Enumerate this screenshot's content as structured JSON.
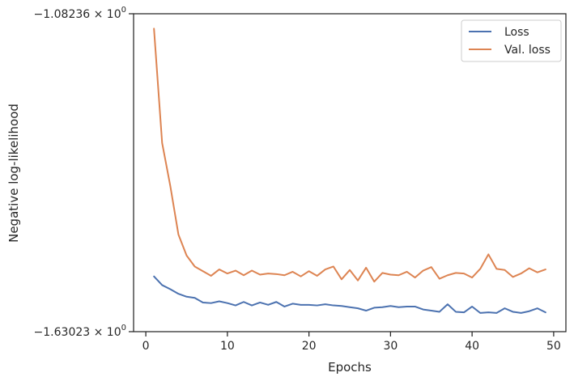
{
  "chart_data": {
    "type": "line",
    "title": "",
    "xlabel": "Epochs",
    "ylabel": "Negative log-likelihood",
    "y_scale": "log",
    "xlim": [
      -1.5,
      51.5
    ],
    "ylim": [
      -1.08236,
      -1.63023
    ],
    "x_ticks": [
      0,
      10,
      20,
      30,
      40,
      50
    ],
    "y_tick_labels": [
      {
        "value": -1.08236,
        "mantissa": "−1.08236",
        "base": "10",
        "exp": "0"
      },
      {
        "value": -1.63023,
        "mantissa": "−1.63023",
        "base": "10",
        "exp": "0"
      }
    ],
    "grid": false,
    "legend_position": "top-right",
    "x": [
      1,
      2,
      3,
      4,
      5,
      6,
      7,
      8,
      9,
      10,
      11,
      12,
      13,
      14,
      15,
      16,
      17,
      18,
      19,
      20,
      21,
      22,
      23,
      24,
      25,
      26,
      27,
      28,
      29,
      30,
      31,
      32,
      33,
      34,
      35,
      36,
      37,
      38,
      39,
      40,
      41,
      42,
      43,
      44,
      45,
      46,
      47,
      48,
      49
    ],
    "series": [
      {
        "name": "Loss",
        "color": "#4c72b0",
        "values": [
          -1.535,
          -1.55,
          -1.557,
          -1.565,
          -1.57,
          -1.572,
          -1.58,
          -1.581,
          -1.578,
          -1.581,
          -1.585,
          -1.579,
          -1.585,
          -1.58,
          -1.584,
          -1.579,
          -1.587,
          -1.582,
          -1.584,
          -1.584,
          -1.585,
          -1.583,
          -1.585,
          -1.586,
          -1.588,
          -1.59,
          -1.594,
          -1.589,
          -1.588,
          -1.586,
          -1.588,
          -1.587,
          -1.587,
          -1.592,
          -1.594,
          -1.596,
          -1.583,
          -1.596,
          -1.597,
          -1.587,
          -1.598,
          -1.597,
          -1.598,
          -1.59,
          -1.596,
          -1.598,
          -1.595,
          -1.59,
          -1.597
        ]
      },
      {
        "name": "Val. loss",
        "color": "#dd8452",
        "values": [
          -1.108,
          -1.305,
          -1.379,
          -1.463,
          -1.499,
          -1.518,
          -1.526,
          -1.534,
          -1.523,
          -1.53,
          -1.525,
          -1.533,
          -1.525,
          -1.532,
          -1.53,
          -1.531,
          -1.533,
          -1.527,
          -1.535,
          -1.526,
          -1.534,
          -1.523,
          -1.518,
          -1.54,
          -1.524,
          -1.542,
          -1.52,
          -1.544,
          -1.529,
          -1.532,
          -1.533,
          -1.527,
          -1.537,
          -1.525,
          -1.519,
          -1.539,
          -1.533,
          -1.529,
          -1.53,
          -1.537,
          -1.522,
          -1.497,
          -1.522,
          -1.524,
          -1.536,
          -1.53,
          -1.521,
          -1.528,
          -1.523
        ]
      }
    ]
  }
}
